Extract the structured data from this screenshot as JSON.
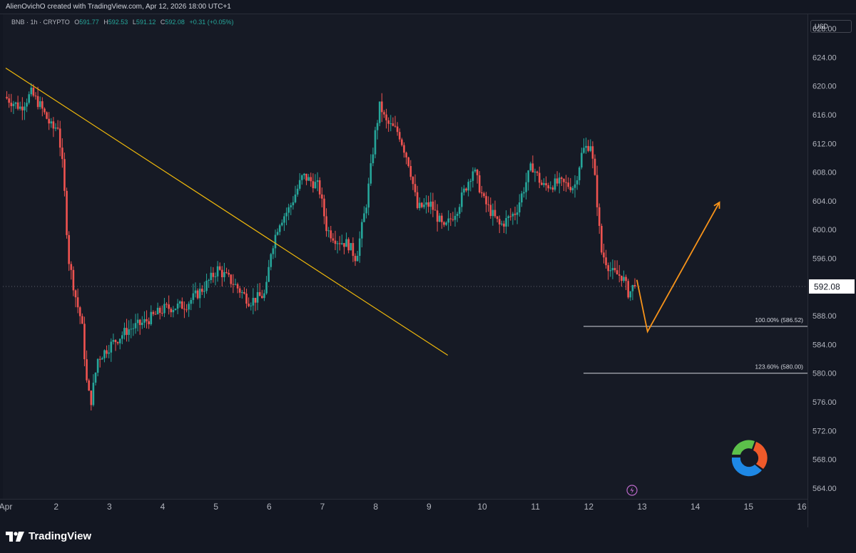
{
  "header": {
    "credit": "AlienOvichO created with TradingView.com, Apr 12, 2026 18:00 UTC+1"
  },
  "legend": {
    "symbol": "BNB · 1h · CRYPTO",
    "open_label": "O",
    "open": "591.77",
    "high_label": "H",
    "high": "592.53",
    "low_label": "L",
    "low": "591.12",
    "close_label": "C",
    "close": "592.08",
    "change": "+0.31 (+0.05%)"
  },
  "price_axis": {
    "currency": "USD",
    "current_price": "592.08",
    "ticks": [
      "628.00",
      "624.00",
      "620.00",
      "616.00",
      "612.00",
      "608.00",
      "604.00",
      "600.00",
      "596.00",
      "592.00",
      "588.00",
      "584.00",
      "580.00",
      "576.00",
      "572.00",
      "568.00",
      "564.00"
    ]
  },
  "time_axis": {
    "labels": [
      "Apr",
      "2",
      "3",
      "4",
      "5",
      "6",
      "7",
      "8",
      "9",
      "10",
      "11",
      "12",
      "13",
      "14",
      "15",
      "16"
    ]
  },
  "fib_levels": [
    {
      "label": "100.00% (586.52)",
      "price": 586.52
    },
    {
      "label": "123.60% (580.00)",
      "price": 580.0
    }
  ],
  "footer": {
    "brand": "TradingView"
  },
  "colors": {
    "up": "#26a69a",
    "down": "#ef5350",
    "trendline": "#f0b90b",
    "projection": "#f7931a",
    "background": "#161a25",
    "fib": "#d1d4dc"
  },
  "chart_data": {
    "type": "candlestick",
    "symbol": "BNB",
    "interval": "1h",
    "ylim": [
      562.5,
      630
    ],
    "xlim_days": [
      1,
      16
    ],
    "current_price": 592.08,
    "trendline": [
      [
        1.0,
        622.5
      ],
      [
        9.3,
        582.5
      ]
    ],
    "projection": [
      [
        12.85,
        593.0
      ],
      [
        13.05,
        585.8
      ],
      [
        14.4,
        603.8
      ]
    ],
    "fib_levels": [
      586.52,
      580.0
    ],
    "anchors": [
      [
        1.0,
        618.5
      ],
      [
        1.3,
        617.0
      ],
      [
        1.5,
        619.0
      ],
      [
        1.65,
        617.5
      ],
      [
        1.9,
        614.0
      ],
      [
        2.0,
        614.5
      ],
      [
        2.1,
        608.0
      ],
      [
        2.2,
        596.0
      ],
      [
        2.35,
        590.0
      ],
      [
        2.45,
        587.0
      ],
      [
        2.55,
        578.0
      ],
      [
        2.62,
        576.0
      ],
      [
        2.75,
        582.0
      ],
      [
        3.0,
        584.0
      ],
      [
        3.3,
        586.0
      ],
      [
        3.6,
        587.0
      ],
      [
        4.0,
        589.0
      ],
      [
        4.4,
        589.5
      ],
      [
        4.75,
        592.0
      ],
      [
        5.0,
        594.5
      ],
      [
        5.3,
        592.5
      ],
      [
        5.6,
        590.0
      ],
      [
        5.9,
        591.0
      ],
      [
        6.0,
        597.0
      ],
      [
        6.15,
        601.0
      ],
      [
        6.35,
        603.0
      ],
      [
        6.6,
        607.5
      ],
      [
        6.9,
        606.0
      ],
      [
        7.05,
        600.0
      ],
      [
        7.25,
        598.5
      ],
      [
        7.45,
        598.0
      ],
      [
        7.6,
        596.0
      ],
      [
        7.8,
        604.0
      ],
      [
        7.95,
        613.0
      ],
      [
        8.05,
        617.5
      ],
      [
        8.15,
        615.0
      ],
      [
        8.4,
        613.5
      ],
      [
        8.6,
        609.0
      ],
      [
        8.75,
        603.0
      ],
      [
        9.0,
        603.5
      ],
      [
        9.25,
        600.0
      ],
      [
        9.5,
        603.0
      ],
      [
        9.8,
        608.5
      ],
      [
        10.0,
        604.0
      ],
      [
        10.3,
        600.5
      ],
      [
        10.6,
        602.5
      ],
      [
        10.9,
        609.0
      ],
      [
        11.1,
        606.0
      ],
      [
        11.4,
        606.5
      ],
      [
        11.7,
        606.0
      ],
      [
        11.85,
        611.0
      ],
      [
        12.0,
        612.0
      ],
      [
        12.1,
        606.0
      ],
      [
        12.2,
        597.0
      ],
      [
        12.4,
        594.0
      ],
      [
        12.6,
        593.5
      ],
      [
        12.72,
        591.0
      ],
      [
        12.8,
        592.08
      ]
    ]
  }
}
